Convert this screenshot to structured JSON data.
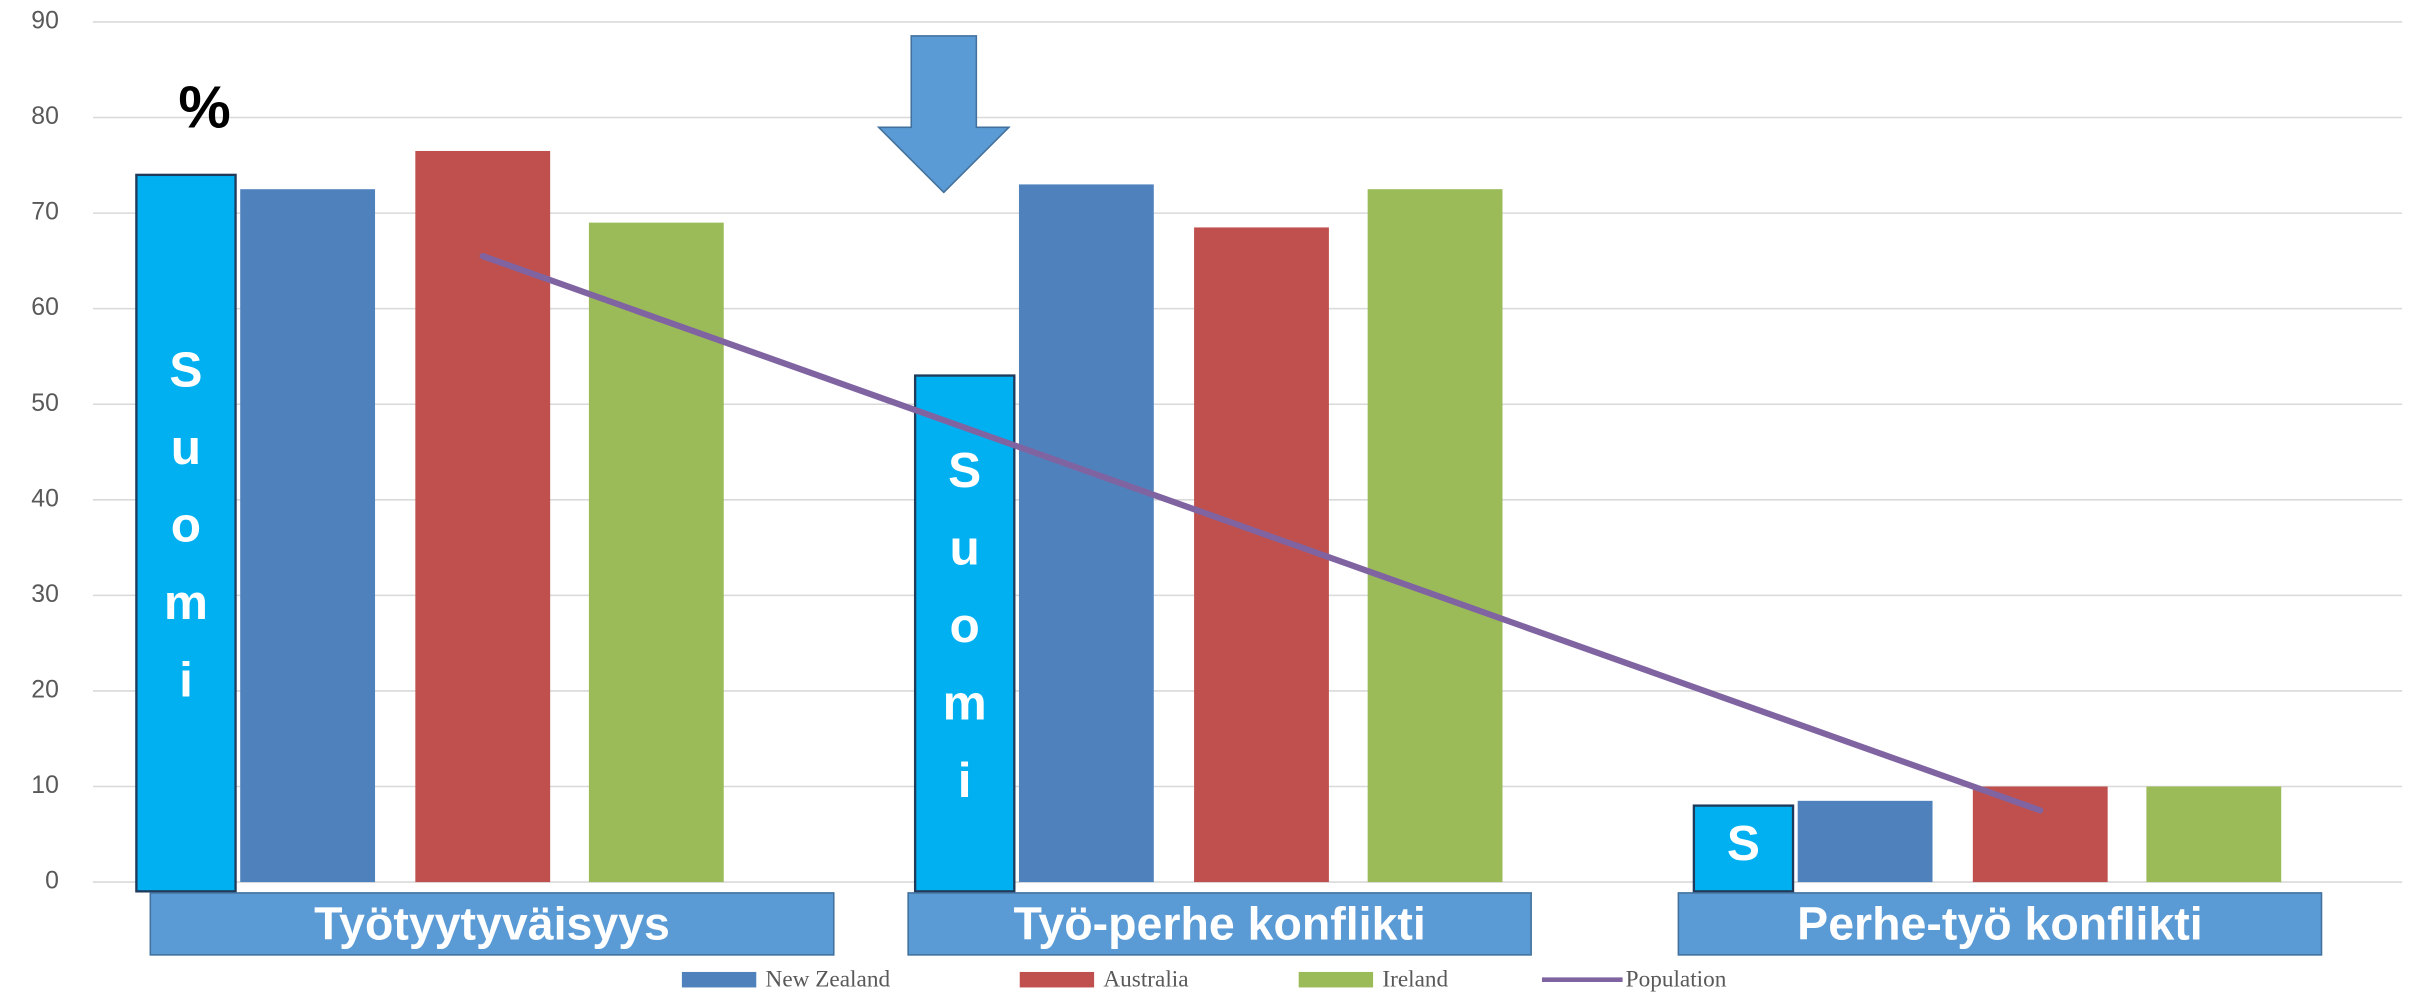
{
  "chart_data": {
    "type": "bar",
    "annotation": "%",
    "categories": [
      "Työtyytyväisyys",
      "Työ-perhe konflikti",
      "Perhe-työ konflikti"
    ],
    "series": [
      {
        "name": "Suomi",
        "color": "#00b0f0",
        "values": [
          74,
          53,
          8
        ],
        "bar_labels": [
          "Suomi",
          "Suomi",
          "S"
        ],
        "legend": false
      },
      {
        "name": "New Zealand",
        "color": "#4f81bd",
        "values": [
          72.5,
          73,
          8.5
        ]
      },
      {
        "name": "Australia",
        "color": "#c0504d",
        "values": [
          76.5,
          68.5,
          10
        ]
      },
      {
        "name": "Ireland",
        "color": "#9bbb59",
        "values": [
          69,
          72.5,
          10
        ]
      },
      {
        "name": "Population",
        "type": "line",
        "color": "#8064a2",
        "values": [
          65.5,
          36.5,
          7.5
        ]
      }
    ],
    "ylim": [
      0,
      90
    ],
    "yticks": [
      0,
      10,
      20,
      30,
      40,
      50,
      60,
      70,
      80,
      90
    ],
    "grid": true,
    "legend": "bottom"
  }
}
